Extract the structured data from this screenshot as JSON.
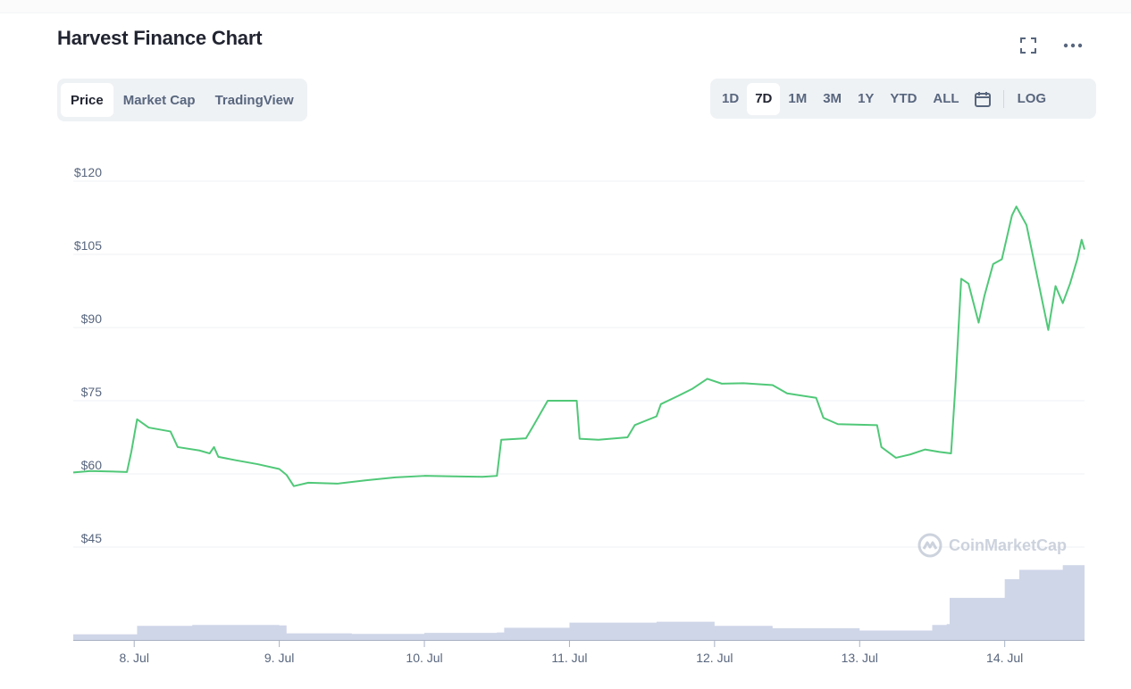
{
  "title": "Harvest Finance Chart",
  "header_icons": [
    "fullscreen-icon",
    "more-options-icon"
  ],
  "view_tabs": [
    {
      "label": "Price",
      "active": true
    },
    {
      "label": "Market Cap",
      "active": false
    },
    {
      "label": "TradingView",
      "active": false
    }
  ],
  "range_buttons": [
    {
      "label": "1D",
      "active": false
    },
    {
      "label": "7D",
      "active": true
    },
    {
      "label": "1M",
      "active": false
    },
    {
      "label": "3M",
      "active": false
    },
    {
      "label": "1Y",
      "active": false
    },
    {
      "label": "YTD",
      "active": false
    },
    {
      "label": "ALL",
      "active": false
    }
  ],
  "calendar_icon": "calendar-icon",
  "log_label": "LOG",
  "watermark": "CoinMarketCap",
  "colors": {
    "line": "#50c878",
    "volume": "#cfd6e8",
    "grid": "#eff2f5",
    "axis_text": "#58667e"
  },
  "chart_data": {
    "type": "line",
    "title": "",
    "xlabel": "",
    "ylabel": "",
    "x_ticks": [
      "8. Jul",
      "9. Jul",
      "10. Jul",
      "11. Jul",
      "12. Jul",
      "13. Jul",
      "14. Jul"
    ],
    "y_ticks": [
      "$45",
      "$60",
      "$75",
      "$90",
      "$105",
      "$120"
    ],
    "y_tick_values": [
      45,
      60,
      75,
      90,
      105,
      120
    ],
    "ylim": [
      45,
      120
    ],
    "xlim": [
      -0.42,
      6.55
    ],
    "grid": true,
    "legend": "none",
    "series": [
      {
        "values": [
          [
            -0.42,
            60.3
          ],
          [
            -0.3,
            60.6
          ],
          [
            -0.05,
            60.4
          ],
          [
            -0.02,
            64.5
          ],
          [
            0.02,
            71.2
          ],
          [
            0.1,
            69.5
          ],
          [
            0.25,
            68.7
          ],
          [
            0.3,
            65.5
          ],
          [
            0.45,
            64.8
          ],
          [
            0.52,
            64.2
          ],
          [
            0.55,
            65.5
          ],
          [
            0.58,
            63.5
          ],
          [
            0.7,
            62.8
          ],
          [
            0.85,
            62.0
          ],
          [
            1.0,
            61.0
          ],
          [
            1.05,
            59.8
          ],
          [
            1.1,
            57.5
          ],
          [
            1.2,
            58.2
          ],
          [
            1.4,
            58.0
          ],
          [
            1.6,
            58.7
          ],
          [
            1.8,
            59.3
          ],
          [
            2.0,
            59.6
          ],
          [
            2.2,
            59.5
          ],
          [
            2.4,
            59.4
          ],
          [
            2.5,
            59.6
          ],
          [
            2.53,
            67.0
          ],
          [
            2.7,
            67.3
          ],
          [
            2.75,
            69.8
          ],
          [
            2.85,
            75.0
          ],
          [
            3.05,
            75.0
          ],
          [
            3.07,
            67.2
          ],
          [
            3.2,
            67.0
          ],
          [
            3.4,
            67.5
          ],
          [
            3.45,
            70.0
          ],
          [
            3.6,
            71.8
          ],
          [
            3.63,
            74.3
          ],
          [
            3.75,
            76.0
          ],
          [
            3.85,
            77.5
          ],
          [
            3.95,
            79.5
          ],
          [
            4.05,
            78.5
          ],
          [
            4.2,
            78.6
          ],
          [
            4.4,
            78.2
          ],
          [
            4.5,
            76.5
          ],
          [
            4.7,
            75.6
          ],
          [
            4.75,
            71.5
          ],
          [
            4.85,
            70.2
          ],
          [
            5.12,
            70.0
          ],
          [
            5.15,
            65.5
          ],
          [
            5.25,
            63.3
          ],
          [
            5.35,
            64.0
          ],
          [
            5.45,
            65.0
          ],
          [
            5.55,
            64.5
          ],
          [
            5.63,
            64.2
          ],
          [
            5.66,
            78.0
          ],
          [
            5.7,
            100.0
          ],
          [
            5.75,
            99.0
          ],
          [
            5.82,
            91.0
          ],
          [
            5.86,
            96.5
          ],
          [
            5.92,
            103.0
          ],
          [
            5.98,
            104.0
          ],
          [
            6.05,
            113.0
          ],
          [
            6.08,
            114.8
          ],
          [
            6.15,
            111.0
          ],
          [
            6.22,
            101.0
          ],
          [
            6.3,
            89.5
          ],
          [
            6.35,
            98.5
          ],
          [
            6.4,
            95.0
          ],
          [
            6.45,
            99.0
          ],
          [
            6.5,
            104.0
          ],
          [
            6.53,
            108.0
          ],
          [
            6.55,
            106.0
          ]
        ]
      }
    ],
    "volume_series": {
      "values": [
        [
          -0.42,
          1.2
        ],
        [
          0.0,
          1.2
        ],
        [
          0.02,
          3.0
        ],
        [
          0.4,
          3.2
        ],
        [
          1.0,
          3.1
        ],
        [
          1.05,
          1.4
        ],
        [
          1.5,
          1.3
        ],
        [
          2.0,
          1.5
        ],
        [
          2.5,
          1.6
        ],
        [
          2.55,
          2.6
        ],
        [
          3.0,
          3.7
        ],
        [
          3.6,
          3.9
        ],
        [
          4.0,
          3.0
        ],
        [
          4.4,
          2.5
        ],
        [
          5.0,
          2.0
        ],
        [
          5.5,
          3.2
        ],
        [
          5.6,
          3.4
        ],
        [
          5.62,
          9.0
        ],
        [
          6.0,
          13.0
        ],
        [
          6.1,
          15.0
        ],
        [
          6.4,
          16.0
        ],
        [
          6.55,
          16.3
        ]
      ],
      "ylim": [
        0,
        30
      ]
    }
  }
}
